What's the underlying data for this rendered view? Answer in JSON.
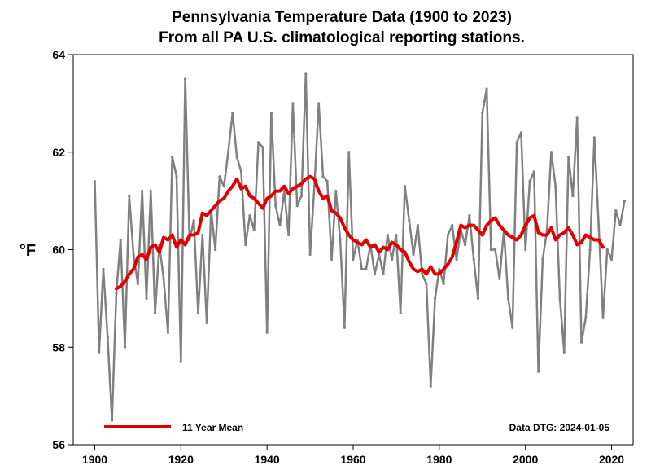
{
  "chart_data": {
    "type": "line",
    "title": "Pennsylvania Temperature Data  (1900 to 2023)",
    "subtitle": "From all PA U.S. climatological reporting stations.",
    "ylabel": "°F",
    "xlabel": "",
    "xlim": [
      1895,
      2025
    ],
    "ylim": [
      56,
      64
    ],
    "x_ticks": [
      "1900",
      "1920",
      "1940",
      "1960",
      "1980",
      "2000",
      "2020"
    ],
    "y_ticks": [
      "56",
      "58",
      "60",
      "62",
      "64"
    ],
    "annotation": "Data DTG: 2024-01-05",
    "legend_position": "bottom-left",
    "colors": {
      "annual": "#808080",
      "mean": "#e00000"
    },
    "series": [
      {
        "key": "annual",
        "color": "#808080",
        "x": [
          1900,
          1901,
          1902,
          1903,
          1904,
          1905,
          1906,
          1907,
          1908,
          1909,
          1910,
          1911,
          1912,
          1913,
          1914,
          1915,
          1916,
          1917,
          1918,
          1919,
          1920,
          1921,
          1922,
          1923,
          1924,
          1925,
          1926,
          1927,
          1928,
          1929,
          1930,
          1931,
          1932,
          1933,
          1934,
          1935,
          1936,
          1937,
          1938,
          1939,
          1940,
          1941,
          1942,
          1943,
          1944,
          1945,
          1946,
          1947,
          1948,
          1949,
          1950,
          1951,
          1952,
          1953,
          1954,
          1955,
          1956,
          1957,
          1958,
          1959,
          1960,
          1961,
          1962,
          1963,
          1964,
          1965,
          1966,
          1967,
          1968,
          1969,
          1970,
          1971,
          1972,
          1973,
          1974,
          1975,
          1976,
          1977,
          1978,
          1979,
          1980,
          1981,
          1982,
          1983,
          1984,
          1985,
          1986,
          1987,
          1988,
          1989,
          1990,
          1991,
          1992,
          1993,
          1994,
          1995,
          1996,
          1997,
          1998,
          1999,
          2000,
          2001,
          2002,
          2003,
          2004,
          2005,
          2006,
          2007,
          2008,
          2009,
          2010,
          2011,
          2012,
          2013,
          2014,
          2015,
          2016,
          2017,
          2018,
          2019,
          2020,
          2021,
          2022,
          2023
        ],
        "values": [
          61.4,
          57.9,
          59.6,
          58.2,
          56.5,
          59.1,
          60.2,
          58.0,
          61.1,
          59.9,
          59.3,
          61.2,
          59.0,
          61.2,
          58.7,
          60.1,
          59.4,
          58.3,
          61.9,
          61.5,
          57.7,
          63.5,
          60.2,
          60.6,
          58.7,
          60.3,
          58.5,
          60.8,
          60.0,
          61.5,
          61.3,
          62.0,
          62.8,
          61.9,
          61.6,
          60.1,
          60.7,
          60.4,
          62.2,
          62.1,
          58.3,
          62.8,
          60.9,
          60.5,
          61.2,
          60.3,
          63.0,
          60.9,
          61.1,
          63.6,
          59.9,
          61.3,
          63.0,
          61.5,
          61.4,
          59.8,
          61.2,
          60.2,
          58.4,
          62.0,
          59.8,
          60.2,
          59.6,
          59.6,
          60.1,
          59.5,
          59.9,
          59.5,
          60.3,
          59.8,
          60.3,
          58.7,
          61.3,
          60.6,
          59.9,
          60.5,
          59.5,
          59.3,
          57.2,
          59.0,
          59.6,
          59.3,
          60.3,
          60.5,
          59.8,
          60.4,
          60.1,
          60.7,
          59.8,
          59.0,
          62.8,
          63.3,
          60.0,
          60.0,
          59.4,
          60.4,
          59.0,
          58.4,
          62.2,
          62.4,
          60.0,
          61.4,
          61.6,
          57.5,
          59.8,
          60.4,
          62.0,
          61.3,
          59.0,
          57.9,
          61.9,
          61.1,
          62.7,
          58.1,
          58.6,
          60.0,
          62.3,
          60.5,
          58.6,
          60.0,
          59.8,
          60.8,
          60.5,
          61.0
        ]
      },
      {
        "key": "mean",
        "name": "11 Year Mean",
        "color": "#e00000",
        "x": [
          1905,
          1906,
          1907,
          1908,
          1909,
          1910,
          1911,
          1912,
          1913,
          1914,
          1915,
          1916,
          1917,
          1918,
          1919,
          1920,
          1921,
          1922,
          1923,
          1924,
          1925,
          1926,
          1927,
          1928,
          1929,
          1930,
          1931,
          1932,
          1933,
          1934,
          1935,
          1936,
          1937,
          1938,
          1939,
          1940,
          1941,
          1942,
          1943,
          1944,
          1945,
          1946,
          1947,
          1948,
          1949,
          1950,
          1951,
          1952,
          1953,
          1954,
          1955,
          1956,
          1957,
          1958,
          1959,
          1960,
          1961,
          1962,
          1963,
          1964,
          1965,
          1966,
          1967,
          1968,
          1969,
          1970,
          1971,
          1972,
          1973,
          1974,
          1975,
          1976,
          1977,
          1978,
          1979,
          1980,
          1981,
          1982,
          1983,
          1984,
          1985,
          1986,
          1987,
          1988,
          1989,
          1990,
          1991,
          1992,
          1993,
          1994,
          1995,
          1996,
          1997,
          1998,
          1999,
          2000,
          2001,
          2002,
          2003,
          2004,
          2005,
          2006,
          2007,
          2008,
          2009,
          2010,
          2011,
          2012,
          2013,
          2014,
          2015,
          2016,
          2017,
          2018
        ],
        "values": [
          59.2,
          59.25,
          59.35,
          59.5,
          59.6,
          59.85,
          59.9,
          59.8,
          60.05,
          60.1,
          59.95,
          60.25,
          60.2,
          60.3,
          60.05,
          60.2,
          60.1,
          60.3,
          60.3,
          60.35,
          60.75,
          60.7,
          60.8,
          60.9,
          61.0,
          61.05,
          61.2,
          61.3,
          61.45,
          61.25,
          61.3,
          61.1,
          61.05,
          60.95,
          60.85,
          61.05,
          61.1,
          61.2,
          61.2,
          61.3,
          61.15,
          61.25,
          61.3,
          61.35,
          61.45,
          61.5,
          61.45,
          61.2,
          61.05,
          61.1,
          60.8,
          60.75,
          60.65,
          60.45,
          60.3,
          60.2,
          60.15,
          60.1,
          60.2,
          60.05,
          60.1,
          59.95,
          60.05,
          60.0,
          60.15,
          60.1,
          60.0,
          59.95,
          59.75,
          59.6,
          59.55,
          59.6,
          59.5,
          59.65,
          59.5,
          59.5,
          59.6,
          59.7,
          59.85,
          60.15,
          60.5,
          60.45,
          60.5,
          60.5,
          60.4,
          60.3,
          60.5,
          60.6,
          60.65,
          60.5,
          60.4,
          60.3,
          60.25,
          60.2,
          60.3,
          60.5,
          60.65,
          60.7,
          60.35,
          60.3,
          60.3,
          60.45,
          60.2,
          60.3,
          60.35,
          60.45,
          60.3,
          60.1,
          60.15,
          60.3,
          60.25,
          60.2,
          60.2,
          60.05
        ]
      }
    ]
  }
}
